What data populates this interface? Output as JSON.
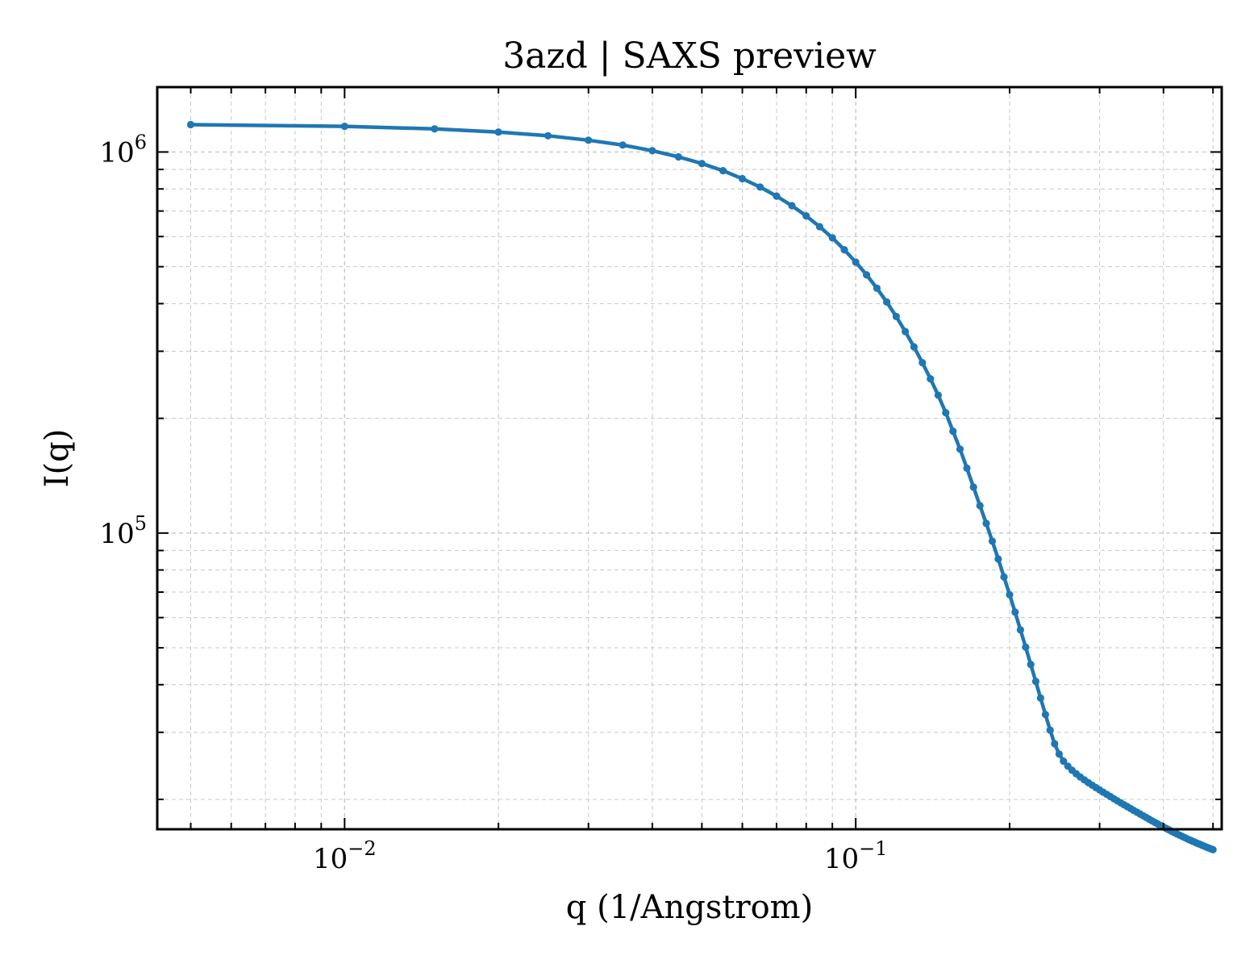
{
  "chart_data": {
    "type": "line",
    "title": "3azd | SAXS preview",
    "xlabel": "q (1/Angstrom)",
    "ylabel": "I(q)",
    "xscale": "log",
    "yscale": "log",
    "xlim": [
      0.0043,
      0.52
    ],
    "ylim": [
      16700,
      1480000
    ],
    "grid": true,
    "legend": "none",
    "x_ticks": [
      {
        "value": 0.01,
        "base": "10",
        "exp": "−2"
      },
      {
        "value": 0.1,
        "base": "10",
        "exp": "−1"
      }
    ],
    "y_ticks": [
      {
        "value": 100000,
        "base": "10",
        "exp": "5"
      },
      {
        "value": 1000000,
        "base": "10",
        "exp": "6"
      }
    ],
    "series": [
      {
        "color": "#1f77b4",
        "x": [
          0.005,
          0.01,
          0.015,
          0.02,
          0.025,
          0.03,
          0.035,
          0.04,
          0.045,
          0.05,
          0.055,
          0.06,
          0.065,
          0.07,
          0.075,
          0.08,
          0.085,
          0.09,
          0.095,
          0.1,
          0.105,
          0.11,
          0.115,
          0.12,
          0.125,
          0.13,
          0.135,
          0.14,
          0.145,
          0.15,
          0.155,
          0.16,
          0.165,
          0.17,
          0.175,
          0.18,
          0.185,
          0.19,
          0.195,
          0.2,
          0.205,
          0.21,
          0.215,
          0.22,
          0.225,
          0.23,
          0.235,
          0.24,
          0.245,
          0.25,
          0.255,
          0.26,
          0.265,
          0.27,
          0.275,
          0.28,
          0.285,
          0.29,
          0.295,
          0.3,
          0.305,
          0.31,
          0.315,
          0.32,
          0.325,
          0.33,
          0.335,
          0.34,
          0.345,
          0.35,
          0.355,
          0.36,
          0.365,
          0.37,
          0.375,
          0.38,
          0.385,
          0.39,
          0.395,
          0.4,
          0.405,
          0.41,
          0.415,
          0.42,
          0.425,
          0.43,
          0.435,
          0.44,
          0.445,
          0.45,
          0.455,
          0.46,
          0.465,
          0.47,
          0.475,
          0.48,
          0.485,
          0.49,
          0.495,
          0.5
        ],
        "y": [
          1180000,
          1168000,
          1150000,
          1128000,
          1103000,
          1074000,
          1043000,
          1008000,
          971000,
          933000,
          893000,
          851000,
          809000,
          766000,
          723000,
          680000,
          637000,
          595000,
          554000,
          514000,
          476000,
          439000,
          404000,
          370000,
          338000,
          308000,
          280000,
          254000,
          230000,
          207000,
          185000,
          166000,
          148000,
          132000,
          118000,
          106000,
          95200,
          85500,
          76700,
          68900,
          62000,
          55700,
          50200,
          45200,
          40800,
          36900,
          33400,
          30400,
          28000,
          26300,
          25200,
          24450,
          23850,
          23350,
          22900,
          22500,
          22150,
          21800,
          21480,
          21180,
          20890,
          20610,
          20340,
          20080,
          19830,
          19590,
          19360,
          19140,
          18920,
          18710,
          18510,
          18310,
          18120,
          17930,
          17750,
          17570,
          17400,
          17240,
          17080,
          16920,
          16780,
          16640,
          16500,
          16370,
          16240,
          16120,
          16000,
          15880,
          15770,
          15660,
          15560,
          15460,
          15360,
          15270,
          15180,
          15090,
          15000,
          14920,
          14840,
          14760
        ]
      }
    ]
  }
}
